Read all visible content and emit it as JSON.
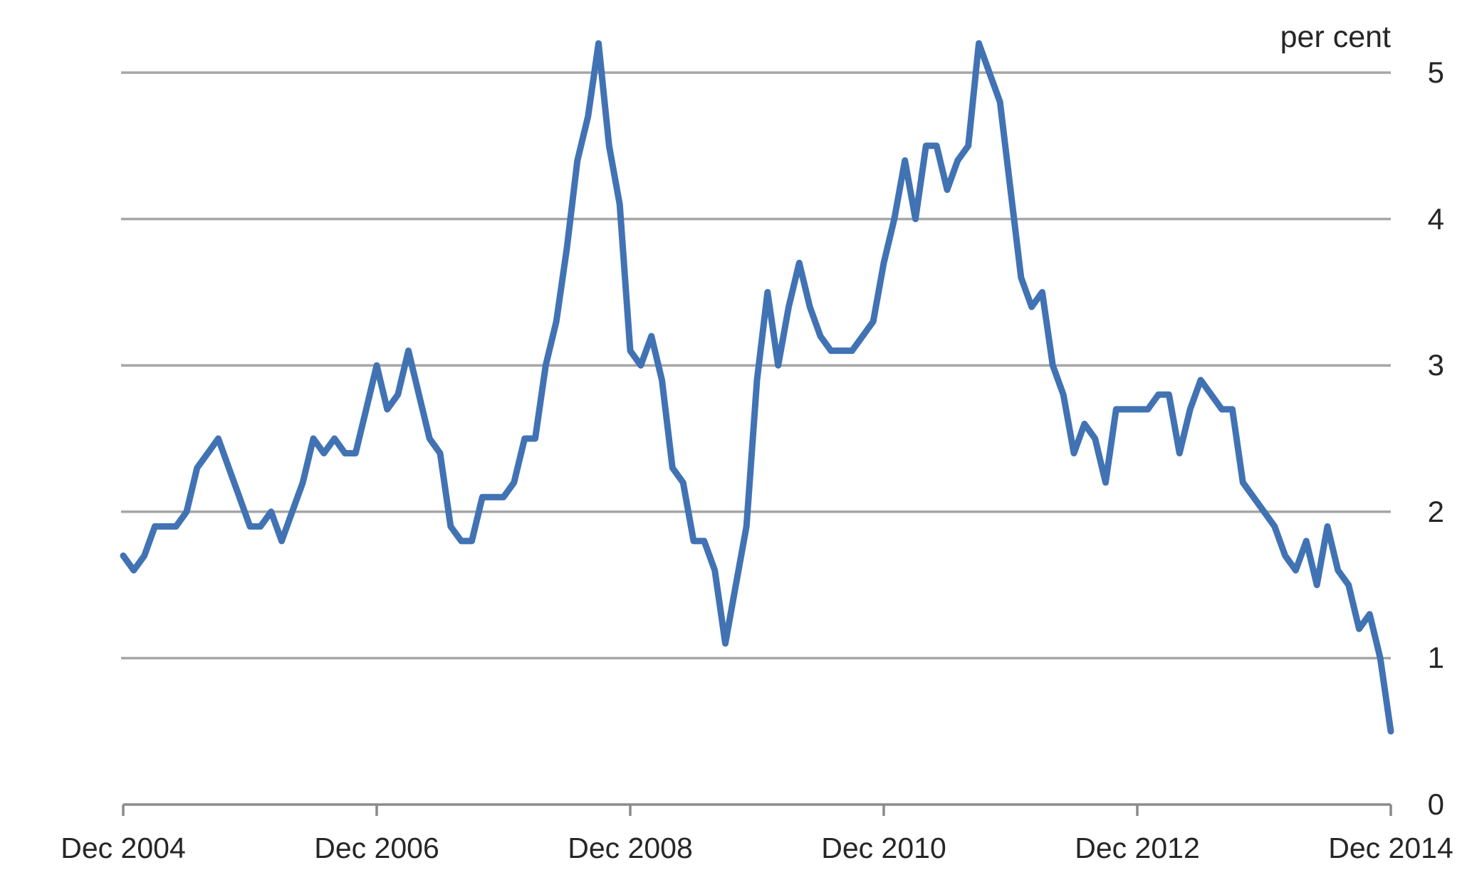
{
  "chart_data": {
    "type": "line",
    "title": "",
    "ylabel": "per cent",
    "xlabel": "",
    "legend_position": "none",
    "grid": "horizontal gridlines at integer values 1-5",
    "ylim": [
      0,
      5.5
    ],
    "gridline_values": [
      1,
      2,
      3,
      4,
      5
    ],
    "y_tick_labels": [
      "0",
      "1",
      "2",
      "3",
      "4",
      "5"
    ],
    "x_tick_labels": [
      "Dec 2004",
      "Dec 2006",
      "Dec 2008",
      "Dec 2010",
      "Dec 2012",
      "Dec 2014"
    ],
    "x": {
      "start": "Dec 2004",
      "end": "Dec 2014",
      "interval": "monthly"
    },
    "values": [
      1.7,
      1.6,
      1.7,
      1.9,
      1.9,
      1.9,
      2.0,
      2.3,
      2.4,
      2.5,
      2.3,
      2.1,
      1.9,
      1.9,
      2.0,
      1.8,
      2.0,
      2.2,
      2.5,
      2.4,
      2.5,
      2.4,
      2.4,
      2.7,
      3.0,
      2.7,
      2.8,
      3.1,
      2.8,
      2.5,
      2.4,
      1.9,
      1.8,
      1.8,
      2.1,
      2.1,
      2.1,
      2.2,
      2.5,
      2.5,
      3.0,
      3.3,
      3.8,
      4.4,
      4.7,
      5.2,
      4.5,
      4.1,
      3.1,
      3.0,
      3.2,
      2.9,
      2.3,
      2.2,
      1.8,
      1.8,
      1.6,
      1.1,
      1.5,
      1.9,
      2.9,
      3.5,
      3.0,
      3.4,
      3.7,
      3.4,
      3.2,
      3.1,
      3.1,
      3.1,
      3.2,
      3.3,
      3.7,
      4.0,
      4.4,
      4.0,
      4.5,
      4.5,
      4.2,
      4.4,
      4.5,
      5.2,
      5.0,
      4.8,
      4.2,
      3.6,
      3.4,
      3.5,
      3.0,
      2.8,
      2.4,
      2.6,
      2.5,
      2.2,
      2.7,
      2.7,
      2.7,
      2.7,
      2.8,
      2.8,
      2.4,
      2.7,
      2.9,
      2.8,
      2.7,
      2.7,
      2.2,
      2.1,
      2.0,
      1.9,
      1.7,
      1.6,
      1.8,
      1.5,
      1.9,
      1.6,
      1.5,
      1.2,
      1.3,
      1.0,
      0.5
    ],
    "colors": {
      "line": "#4173b4",
      "gridline": "#a6a6a6",
      "axis": "#8a8a8a",
      "text": "#262626"
    }
  }
}
